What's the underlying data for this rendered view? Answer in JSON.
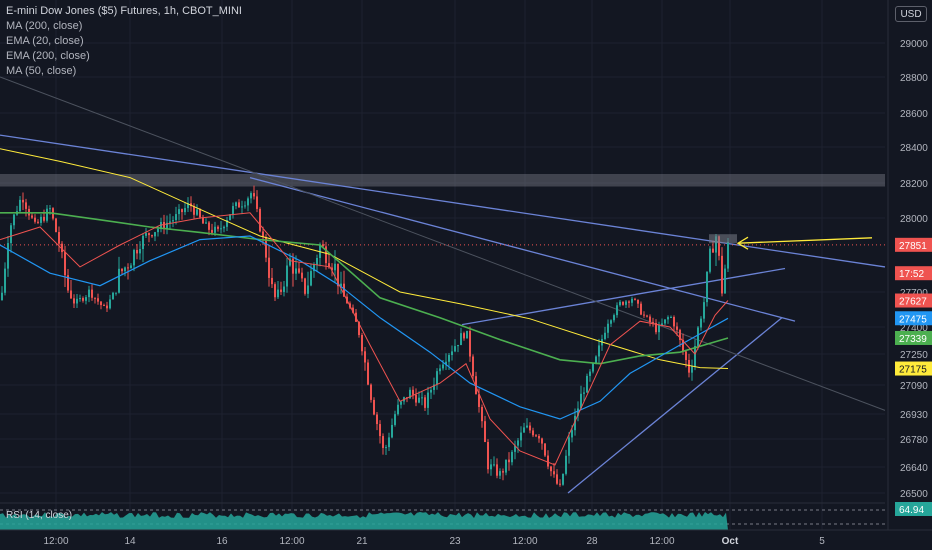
{
  "header": {
    "title": "E-mini Dow Jones ($5) Futures, 1h, CBOT_MINI",
    "indicators": [
      "MA (200, close)",
      "EMA (20, close)",
      "EMA (200, close)",
      "MA (50, close)"
    ]
  },
  "currency_button": "USD",
  "rsi": {
    "label": "RSI (14, close)",
    "value": "64.94"
  },
  "price_badges": [
    {
      "label": "27851",
      "color": "#ef5350",
      "value": 27851
    },
    {
      "label": "17:52",
      "color": "#ef5350",
      "value": 27760
    },
    {
      "label": "27627",
      "color": "#ef5350",
      "value": 27627
    },
    {
      "label": "27475",
      "color": "#2196f3",
      "value": 27475
    },
    {
      "label": "27339",
      "color": "#4caf50",
      "value": 27339
    },
    {
      "label": "27175",
      "color": "#ffeb3b",
      "value": 27175
    }
  ],
  "chart_data": {
    "type": "candlestick",
    "title": "E-mini Dow Jones ($5) Futures, 1h, CBOT_MINI",
    "y_ticks": [
      29000,
      28800,
      28600,
      28400,
      28200,
      28000,
      27700,
      27400,
      27250,
      27090,
      26930,
      26780,
      26640,
      26500
    ],
    "x_ticks": [
      "12:00",
      "14",
      "16",
      "12:00",
      "21",
      "23",
      "12:00",
      "28",
      "12:00",
      "Oct",
      "5"
    ],
    "resistance_zone": [
      28180,
      28250
    ],
    "current_price_line": 27851,
    "close_path": [
      [
        0,
        27630
      ],
      [
        10,
        27950
      ],
      [
        22,
        28130
      ],
      [
        35,
        27950
      ],
      [
        50,
        28050
      ],
      [
        62,
        27800
      ],
      [
        75,
        27600
      ],
      [
        90,
        27700
      ],
      [
        105,
        27550
      ],
      [
        118,
        27750
      ],
      [
        130,
        27800
      ],
      [
        145,
        27900
      ],
      [
        160,
        27950
      ],
      [
        175,
        28000
      ],
      [
        190,
        28080
      ],
      [
        205,
        27950
      ],
      [
        218,
        27920
      ],
      [
        232,
        28050
      ],
      [
        245,
        28100
      ],
      [
        252,
        28150
      ],
      [
        262,
        27900
      ],
      [
        275,
        27650
      ],
      [
        290,
        27800
      ],
      [
        305,
        27700
      ],
      [
        320,
        27850
      ],
      [
        335,
        27780
      ],
      [
        348,
        27600
      ],
      [
        360,
        27350
      ],
      [
        372,
        27000
      ],
      [
        384,
        26700
      ],
      [
        396,
        26950
      ],
      [
        410,
        27050
      ],
      [
        425,
        26980
      ],
      [
        440,
        27200
      ],
      [
        455,
        27300
      ],
      [
        466,
        27380
      ],
      [
        478,
        27000
      ],
      [
        488,
        26650
      ],
      [
        500,
        26600
      ],
      [
        512,
        26700
      ],
      [
        525,
        26850
      ],
      [
        540,
        26800
      ],
      [
        552,
        26600
      ],
      [
        560,
        26520
      ],
      [
        570,
        26800
      ],
      [
        582,
        27050
      ],
      [
        595,
        27200
      ],
      [
        608,
        27450
      ],
      [
        620,
        27600
      ],
      [
        632,
        27650
      ],
      [
        645,
        27480
      ],
      [
        658,
        27380
      ],
      [
        670,
        27500
      ],
      [
        682,
        27280
      ],
      [
        690,
        27150
      ],
      [
        700,
        27450
      ],
      [
        708,
        27780
      ],
      [
        716,
        27900
      ],
      [
        722,
        27700
      ],
      [
        728,
        27851
      ]
    ],
    "ma200": [
      [
        0,
        28390
      ],
      [
        60,
        28320
      ],
      [
        130,
        28230
      ],
      [
        200,
        28050
      ],
      [
        260,
        27900
      ],
      [
        330,
        27820
      ],
      [
        400,
        27700
      ],
      [
        460,
        27600
      ],
      [
        530,
        27470
      ],
      [
        600,
        27320
      ],
      [
        660,
        27220
      ],
      [
        700,
        27180
      ],
      [
        728,
        27175
      ]
    ],
    "ema20": [
      [
        0,
        27880
      ],
      [
        40,
        27950
      ],
      [
        80,
        27780
      ],
      [
        120,
        27850
      ],
      [
        160,
        27960
      ],
      [
        200,
        28000
      ],
      [
        250,
        28030
      ],
      [
        290,
        27800
      ],
      [
        330,
        27780
      ],
      [
        370,
        27300
      ],
      [
        400,
        27000
      ],
      [
        440,
        27100
      ],
      [
        466,
        27200
      ],
      [
        490,
        26900
      ],
      [
        520,
        26720
      ],
      [
        555,
        26650
      ],
      [
        580,
        26950
      ],
      [
        610,
        27300
      ],
      [
        640,
        27450
      ],
      [
        670,
        27400
      ],
      [
        695,
        27250
      ],
      [
        715,
        27500
      ],
      [
        728,
        27627
      ]
    ],
    "ema200": [
      [
        0,
        28030
      ],
      [
        50,
        28030
      ],
      [
        100,
        27990
      ],
      [
        150,
        27950
      ],
      [
        200,
        27920
      ],
      [
        260,
        27880
      ],
      [
        320,
        27850
      ],
      [
        380,
        27650
      ],
      [
        440,
        27480
      ],
      [
        500,
        27330
      ],
      [
        560,
        27220
      ],
      [
        600,
        27200
      ],
      [
        640,
        27240
      ],
      [
        680,
        27260
      ],
      [
        728,
        27339
      ]
    ],
    "ma50": [
      [
        0,
        27850
      ],
      [
        50,
        27760
      ],
      [
        100,
        27720
      ],
      [
        150,
        27800
      ],
      [
        200,
        27880
      ],
      [
        250,
        27900
      ],
      [
        300,
        27800
      ],
      [
        340,
        27720
      ],
      [
        380,
        27480
      ],
      [
        430,
        27260
      ],
      [
        470,
        27100
      ],
      [
        520,
        26970
      ],
      [
        560,
        26900
      ],
      [
        600,
        27000
      ],
      [
        630,
        27150
      ],
      [
        680,
        27300
      ],
      [
        728,
        27475
      ]
    ],
    "trend_lines": [
      {
        "from": [
          0,
          28470
        ],
        "to": [
          885,
          27780
        ],
        "color": "#6b83d6"
      },
      {
        "from": [
          250,
          28230
        ],
        "to": [
          795,
          27450
        ],
        "color": "#6b83d6"
      },
      {
        "from": [
          462,
          27420
        ],
        "to": [
          785,
          27775
        ],
        "color": "#6b83d6"
      },
      {
        "from": [
          568,
          26500
        ],
        "to": [
          782,
          27480
        ],
        "color": "#6b83d6"
      },
      {
        "from": [
          0,
          28800
        ],
        "to": [
          885,
          26950
        ],
        "color": "#4c525e"
      }
    ],
    "arrow": {
      "from": [
        872,
        27890
      ],
      "to": [
        738,
        27860
      ],
      "color": "#ffeb3b"
    },
    "box": {
      "x0": 709,
      "x1": 737,
      "y0": 27860,
      "y1": 27910
    }
  }
}
